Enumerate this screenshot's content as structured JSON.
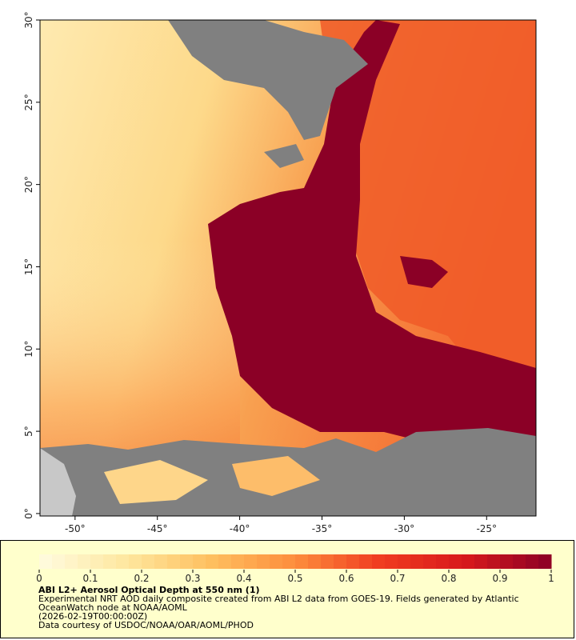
{
  "map": {
    "title": "ABI L2+ Aerosol Optical Depth at 550 nm (1)",
    "description": "Experimental NRT AOD daily composite created from ABI L2 data from GOES-19. Fields generated by Atlantic OceanWatch node at NOAA/AOML",
    "timestamp": "(2026-02-19T00:00:00Z)",
    "credit": "Data courtesy of USDOC/NOAA/OAR/AOML/PHOD",
    "xlim": [
      -52.13,
      -22.0
    ],
    "ylim": [
      -0.15,
      30
    ],
    "xticks": [
      {
        "value": -50,
        "label": "-50°"
      },
      {
        "value": -45,
        "label": "-45°"
      },
      {
        "value": -40,
        "label": "-40°"
      },
      {
        "value": -35,
        "label": "-35°"
      },
      {
        "value": -30,
        "label": "-30°"
      },
      {
        "value": -25,
        "label": "-25°"
      }
    ],
    "yticks": [
      {
        "value": 0,
        "label": "0°"
      },
      {
        "value": 5,
        "label": "5°"
      },
      {
        "value": 10,
        "label": "10°"
      },
      {
        "value": 15,
        "label": "15°"
      },
      {
        "value": 20,
        "label": "20°"
      },
      {
        "value": 25,
        "label": "25°"
      },
      {
        "value": 30,
        "label": "30°"
      }
    ],
    "colorbar": {
      "lim": [
        0,
        1
      ],
      "ticks": [
        0,
        0.1,
        0.2,
        0.3,
        0.4,
        0.5,
        0.6,
        0.7,
        0.8,
        0.9,
        1
      ],
      "colors": [
        "#fffbe0",
        "#fee8a0",
        "#fec060",
        "#fd8d3c",
        "#f03b20",
        "#d7191c",
        "#8b0026"
      ]
    }
  }
}
